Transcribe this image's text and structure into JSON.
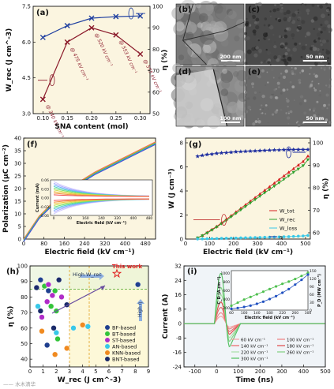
{
  "figure": {
    "panels": [
      "(a)",
      "(b)",
      "(c)",
      "(d)",
      "(e)",
      "(f)",
      "(g)",
      "(h)",
      "(i)"
    ],
    "scale_bars": {
      "b": "200 nm",
      "c": "50 nm",
      "d": "100 nm",
      "e": "50 nm"
    },
    "watermark": "—— 水木清华"
  },
  "chart_data": [
    {
      "panel": "a",
      "type": "line",
      "xlabel": "SNA content (mol)",
      "ylabel": "W_rec (J cm^-3)",
      "ylabel2": "η (%)",
      "x": [
        0.1,
        0.15,
        0.2,
        0.25,
        0.3
      ],
      "xlim": [
        0.08,
        0.32
      ],
      "xticks": [
        "0.10",
        "0.15",
        "0.20",
        "0.25",
        "0.30"
      ],
      "ylim": [
        3.0,
        7.5
      ],
      "yticks": [
        "3.0",
        "4.5",
        "6.0",
        "7.5"
      ],
      "y2lim": [
        50,
        100
      ],
      "y2ticks": [
        "50",
        "60",
        "70",
        "80",
        "90",
        "100"
      ],
      "series": [
        {
          "axis": "left",
          "values": [
            3.6,
            6.0,
            6.6,
            6.3,
            5.5
          ],
          "color": "#8B1A2B"
        },
        {
          "axis": "right",
          "values": [
            85.5,
            91.0,
            94.5,
            95.2,
            95.5
          ],
          "color": "#1f3fa0"
        }
      ],
      "annotations": [
        "@ 340 kV cm⁻¹",
        "@ 475 kV cm⁻¹",
        "@ 520 kV cm⁻¹",
        "@ 553 kV cm⁻¹",
        "@ 575 kV cm⁻¹"
      ]
    },
    {
      "panel": "f",
      "type": "line",
      "xlabel": "Electric field (kV cm⁻¹)",
      "ylabel": "Polarization (μC cm⁻²)",
      "xlim": [
        0,
        520
      ],
      "xticks": [
        "0",
        "80",
        "160",
        "240",
        "320",
        "400",
        "480"
      ],
      "ylim": [
        0,
        40
      ],
      "yticks": [
        "0",
        "5",
        "10",
        "15",
        "20",
        "25",
        "30",
        "35",
        "40"
      ],
      "series": [
        {
          "x": [
            0,
            60,
            120,
            200,
            280,
            360,
            440,
            520
          ],
          "values": [
            0,
            9,
            15,
            21.5,
            26.5,
            30.5,
            34.5,
            38.5
          ]
        }
      ],
      "inset": {
        "xlabel": "Electric field (kV cm⁻¹)",
        "ylabel": "Current (mA)",
        "xticks": [
          "0",
          "80",
          "160",
          "240",
          "320",
          "400",
          "480"
        ],
        "yticks": [
          "-0.06",
          "-0.03",
          "0.00",
          "0.03",
          "0.06"
        ],
        "ylim": [
          -0.06,
          0.06
        ]
      }
    },
    {
      "panel": "g",
      "type": "line",
      "xlabel": "Electric field (kV cm⁻¹)",
      "ylabel": "W (J cm⁻³)",
      "ylabel2": "η (%)",
      "x": [
        50,
        70,
        90,
        110,
        130,
        150,
        170,
        190,
        210,
        230,
        250,
        270,
        290,
        310,
        330,
        350,
        370,
        390,
        410,
        430,
        450,
        470,
        490,
        510
      ],
      "xlim": [
        40,
        520
      ],
      "xticks": [
        "0",
        "100",
        "200",
        "300",
        "400",
        "500"
      ],
      "ylim": [
        0,
        8
      ],
      "yticks": [
        "0",
        "2",
        "4",
        "6",
        "8"
      ],
      "y2lim": [
        60,
        100
      ],
      "y2ticks": [
        "60",
        "70",
        "80",
        "90",
        "100"
      ],
      "series": [
        {
          "name": "W_tot",
          "axis": "left",
          "color": "#d42020",
          "values": [
            0.1,
            0.3,
            0.55,
            0.8,
            1.05,
            1.35,
            1.65,
            1.95,
            2.25,
            2.55,
            2.85,
            3.15,
            3.45,
            3.75,
            4.05,
            4.35,
            4.65,
            4.95,
            5.25,
            5.55,
            5.85,
            6.15,
            6.45,
            6.9
          ]
        },
        {
          "name": "W_rec",
          "axis": "left",
          "color": "#2ca02c",
          "values": [
            0.1,
            0.28,
            0.5,
            0.75,
            1.0,
            1.28,
            1.55,
            1.85,
            2.13,
            2.42,
            2.7,
            3.0,
            3.28,
            3.56,
            3.85,
            4.12,
            4.4,
            4.68,
            4.97,
            5.25,
            5.55,
            5.82,
            6.1,
            6.6
          ]
        },
        {
          "name": "W_loss",
          "axis": "left",
          "color": "#38c8e8",
          "values": [
            0.01,
            0.02,
            0.03,
            0.04,
            0.05,
            0.06,
            0.07,
            0.08,
            0.09,
            0.1,
            0.11,
            0.12,
            0.13,
            0.14,
            0.15,
            0.16,
            0.17,
            0.18,
            0.19,
            0.2,
            0.22,
            0.24,
            0.26,
            0.3
          ]
        },
        {
          "name": "η",
          "axis": "right",
          "color": "#1f2fa0",
          "values": [
            94.0,
            94.4,
            94.8,
            95.0,
            95.3,
            95.5,
            95.6,
            95.8,
            96.0,
            96.1,
            96.2,
            96.3,
            96.4,
            96.5,
            96.6,
            96.7,
            96.8,
            96.8,
            96.9,
            96.9,
            97.0,
            97.0,
            97.0,
            97.0
          ]
        }
      ]
    },
    {
      "panel": "h",
      "type": "scatter",
      "xlabel": "W_rec (J cm^-3)",
      "ylabel": "η (%)",
      "xlim": [
        0,
        9
      ],
      "xticks": [
        "0",
        "1",
        "2",
        "3",
        "4",
        "5",
        "6",
        "7",
        "8",
        "9"
      ],
      "ylim": [
        35,
        100
      ],
      "yticks": [
        "40",
        "50",
        "60",
        "70",
        "80",
        "90",
        "100"
      ],
      "annotations": [
        "High W_rec",
        "High η",
        "This work"
      ],
      "this_work": {
        "x": 6.6,
        "y": 95
      },
      "series": [
        {
          "name": "BF-based",
          "color": "#1f3f8f",
          "points": [
            [
              0.8,
              91
            ],
            [
              1.4,
              84
            ],
            [
              1.3,
              49
            ],
            [
              8.2,
              88
            ]
          ]
        },
        {
          "name": "BT-based",
          "color": "#33c43a",
          "points": [
            [
              1.1,
              87
            ],
            [
              1.9,
              84
            ],
            [
              1.6,
              74
            ],
            [
              2.0,
              71
            ],
            [
              2.1,
              53
            ]
          ]
        },
        {
          "name": "ST-based",
          "color": "#b02cc8",
          "points": [
            [
              1.4,
              88
            ],
            [
              1.7,
              81
            ],
            [
              1.3,
              77
            ],
            [
              2.4,
              80
            ],
            [
              0.9,
              67
            ]
          ]
        },
        {
          "name": "AN-based",
          "color": "#38c8e8",
          "points": [
            [
              0.6,
              74
            ],
            [
              3.3,
              60
            ],
            [
              4.4,
              61
            ],
            [
              2.0,
              57
            ]
          ]
        },
        {
          "name": "KNN-based",
          "color": "#f08a20",
          "points": [
            [
              0.9,
              58
            ],
            [
              2.8,
              47
            ],
            [
              4.0,
              62
            ],
            [
              1.9,
              43
            ]
          ]
        },
        {
          "name": "BNT-based",
          "color": "#1a2a6a",
          "points": [
            [
              0.5,
              86
            ],
            [
              0.8,
              71
            ],
            [
              1.8,
              60
            ],
            [
              2.8,
              75
            ],
            [
              2.2,
              91
            ]
          ]
        }
      ]
    },
    {
      "panel": "i",
      "type": "line",
      "xlabel": "Time (ns)",
      "ylabel": "Current (A)",
      "xlim": [
        -150,
        500
      ],
      "xticks": [
        "-100",
        "0",
        "100",
        "200",
        "300",
        "400",
        "500"
      ],
      "ylim": [
        -24,
        32
      ],
      "yticks": [
        "-24",
        "-16",
        "-8",
        "0",
        "8",
        "16",
        "24",
        "32"
      ],
      "series": [
        {
          "name": "60 kV cm⁻¹",
          "color": "#f4a0a0",
          "peak": 4,
          "trough": -2
        },
        {
          "name": "100 kV cm⁻¹",
          "color": "#ee8080",
          "peak": 6,
          "trough": -3
        },
        {
          "name": "140 kV cm⁻¹",
          "color": "#e86464",
          "peak": 9,
          "trough": -4.5
        },
        {
          "name": "180 kV cm⁻¹",
          "color": "#e04848",
          "peak": 12,
          "trough": -6
        },
        {
          "name": "220 kV cm⁻¹",
          "color": "#a8e0a8",
          "peak": 16,
          "trough": -8
        },
        {
          "name": "260 kV cm⁻¹",
          "color": "#80d080",
          "peak": 20,
          "trough": -10
        },
        {
          "name": "300 kV cm⁻¹",
          "color": "#50c060",
          "peak": 28,
          "trough": -13
        }
      ],
      "inset": {
        "xlabel": "Electric field (kV cm⁻¹)",
        "ylabel": "C_D (A cm⁻²)",
        "ylabel2": "P_D (MW cm⁻³)",
        "xticks": [
          "60",
          "100",
          "140",
          "180",
          "220",
          "260",
          "300"
        ],
        "yticks": [
          "200",
          "400",
          "600",
          "800",
          "1000"
        ],
        "y2ticks": [
          "0",
          "30",
          "60",
          "90",
          "120",
          "150"
        ],
        "x": [
          60,
          80,
          100,
          120,
          140,
          160,
          180,
          200,
          220,
          240,
          260,
          280,
          300
        ],
        "CD": [
          250,
          320,
          390,
          450,
          510,
          570,
          630,
          690,
          750,
          800,
          860,
          930,
          1000
        ],
        "PD": [
          5,
          8,
          12,
          17,
          24,
          32,
          42,
          53,
          66,
          80,
          97,
          115,
          135
        ]
      }
    }
  ]
}
